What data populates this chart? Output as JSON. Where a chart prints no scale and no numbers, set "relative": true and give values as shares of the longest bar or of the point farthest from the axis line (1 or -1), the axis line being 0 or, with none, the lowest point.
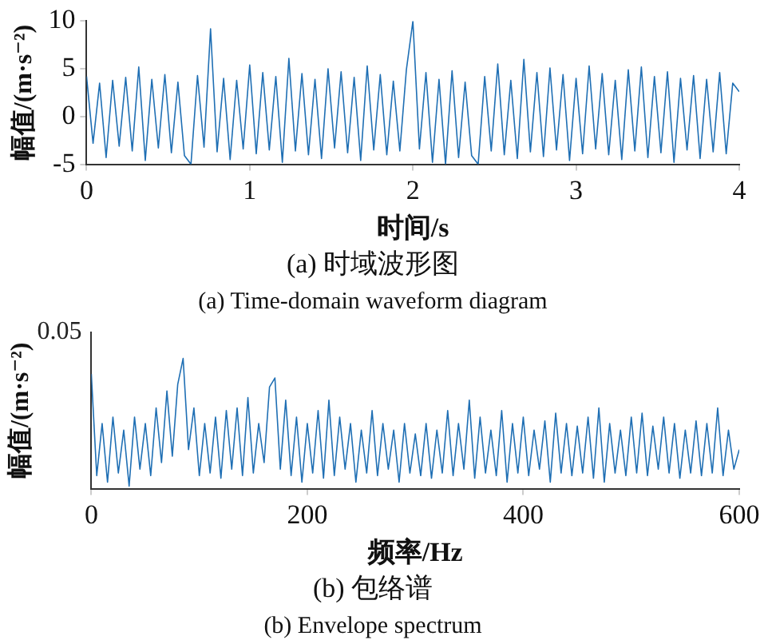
{
  "chart_data": [
    {
      "type": "line",
      "title": "(a) 时域波形图",
      "subtitle": "(a) Time-domain waveform diagram",
      "xlabel": "时间/s",
      "ylabel": "幅值/(m·s⁻²)",
      "xlim": [
        0,
        4
      ],
      "xticks": [
        0,
        1,
        2,
        3,
        4
      ],
      "ylim": [
        -5,
        10
      ],
      "yticks": [
        -5,
        0,
        5,
        10
      ],
      "grid": false,
      "legend": false,
      "marker": "none",
      "line_style": "solid",
      "x": [
        0,
        0.04,
        0.08,
        0.12,
        0.16,
        0.2,
        0.24,
        0.28,
        0.32,
        0.36,
        0.4,
        0.44,
        0.48,
        0.52,
        0.56,
        0.6,
        0.64,
        0.68,
        0.72,
        0.76,
        0.8,
        0.84,
        0.88,
        0.92,
        0.96,
        1,
        1.04,
        1.08,
        1.12,
        1.16,
        1.2,
        1.24,
        1.28,
        1.32,
        1.36,
        1.4,
        1.44,
        1.48,
        1.52,
        1.56,
        1.6,
        1.64,
        1.68,
        1.72,
        1.76,
        1.8,
        1.84,
        1.88,
        1.92,
        1.96,
        2,
        2.04,
        2.08,
        2.12,
        2.16,
        2.2,
        2.24,
        2.28,
        2.32,
        2.36,
        2.4,
        2.44,
        2.48,
        2.52,
        2.56,
        2.6,
        2.64,
        2.68,
        2.72,
        2.76,
        2.8,
        2.84,
        2.88,
        2.92,
        2.96,
        3,
        3.04,
        3.08,
        3.12,
        3.16,
        3.2,
        3.24,
        3.28,
        3.32,
        3.36,
        3.4,
        3.44,
        3.48,
        3.52,
        3.56,
        3.6,
        3.64,
        3.68,
        3.72,
        3.76,
        3.8,
        3.84,
        3.88,
        3.92,
        3.96,
        4
      ],
      "series": [
        {
          "color": "#1f6fb4",
          "values": [
            4.2,
            -2.8,
            3.5,
            -4.3,
            3.8,
            -3.1,
            4.1,
            -3.6,
            5.2,
            -4.6,
            3.9,
            -3.3,
            4.4,
            -3.8,
            3.6,
            -4.1,
            -5.0,
            4.3,
            -3.2,
            9.2,
            -3.7,
            4.0,
            -4.5,
            3.8,
            -3.4,
            5.4,
            -3.9,
            4.6,
            -3.5,
            4.2,
            -4.8,
            6.1,
            -3.6,
            4.5,
            -4.0,
            3.9,
            -4.4,
            5.0,
            -3.3,
            4.7,
            -3.8,
            4.1,
            -4.6,
            5.3,
            -3.5,
            4.4,
            -4.0,
            3.7,
            -3.6,
            4.9,
            10,
            -3.4,
            4.6,
            -4.8,
            3.9,
            -5.0,
            4.8,
            -4.3,
            3.6,
            -4.1,
            -5.0,
            4.2,
            -3.6,
            5.5,
            -4.0,
            3.8,
            -4.4,
            6.0,
            -3.7,
            4.6,
            -4.2,
            5.1,
            -3.5,
            4.4,
            -4.6,
            4.0,
            -3.9,
            5.3,
            -3.4,
            4.5,
            -4.0,
            3.8,
            -4.5,
            4.9,
            -3.6,
            5.2,
            -4.3,
            4.2,
            -3.8,
            4.7,
            -4.8,
            4.0,
            -3.5,
            4.3,
            -4.4,
            3.9,
            -3.7,
            4.6,
            -3.9,
            3.5,
            2.6
          ]
        }
      ]
    },
    {
      "type": "line",
      "title": "(b) 包络谱",
      "subtitle": "(b) Envelope spectrum",
      "xlabel": "频率/Hz",
      "ylabel": "幅值/(m·s⁻²)",
      "annotations": [
        "0.05"
      ],
      "relative": true,
      "xlim": [
        0,
        600
      ],
      "xticks": [
        0,
        200,
        400,
        600
      ],
      "grid": false,
      "legend": false,
      "marker": "none",
      "line_style": "solid",
      "x": [
        0,
        5,
        10,
        15,
        20,
        25,
        30,
        35,
        40,
        45,
        50,
        55,
        60,
        65,
        70,
        75,
        80,
        85,
        90,
        95,
        100,
        105,
        110,
        115,
        120,
        125,
        130,
        135,
        140,
        145,
        150,
        155,
        160,
        165,
        170,
        175,
        180,
        185,
        190,
        195,
        200,
        205,
        210,
        215,
        220,
        225,
        230,
        235,
        240,
        245,
        250,
        255,
        260,
        265,
        270,
        275,
        280,
        285,
        290,
        295,
        300,
        305,
        310,
        315,
        320,
        325,
        330,
        335,
        340,
        345,
        350,
        355,
        360,
        365,
        370,
        375,
        380,
        385,
        390,
        395,
        400,
        405,
        410,
        415,
        420,
        425,
        430,
        435,
        440,
        445,
        450,
        455,
        460,
        465,
        470,
        475,
        480,
        485,
        490,
        495,
        500,
        505,
        510,
        515,
        520,
        525,
        530,
        535,
        540,
        545,
        550,
        555,
        560,
        565,
        570,
        575,
        580,
        585,
        590,
        595,
        600
      ],
      "series": [
        {
          "color": "#1f6fb4",
          "values": [
            0.88,
            0.1,
            0.5,
            0.05,
            0.55,
            0.12,
            0.45,
            0.02,
            0.55,
            0.15,
            0.5,
            0.1,
            0.62,
            0.2,
            0.75,
            0.25,
            0.8,
            1,
            0.3,
            0.62,
            0.1,
            0.5,
            0.12,
            0.55,
            0.08,
            0.6,
            0.15,
            0.62,
            0.1,
            0.7,
            0.12,
            0.5,
            0.2,
            0.78,
            0.85,
            0.15,
            0.68,
            0.1,
            0.55,
            0.05,
            0.5,
            0.12,
            0.6,
            0.08,
            0.68,
            0.1,
            0.55,
            0.15,
            0.5,
            0.05,
            0.45,
            0.12,
            0.6,
            0.1,
            0.5,
            0.15,
            0.45,
            0.05,
            0.5,
            0.12,
            0.42,
            0.1,
            0.5,
            0.08,
            0.45,
            0.12,
            0.6,
            0.1,
            0.5,
            0.15,
            0.68,
            0.08,
            0.55,
            0.12,
            0.45,
            0.1,
            0.6,
            0.05,
            0.5,
            0.12,
            0.55,
            0.1,
            0.45,
            0.15,
            0.52,
            0.05,
            0.58,
            0.12,
            0.5,
            0.1,
            0.48,
            0.12,
            0.55,
            0.08,
            0.62,
            0.05,
            0.5,
            0.12,
            0.45,
            0.1,
            0.55,
            0.12,
            0.58,
            0.1,
            0.48,
            0.15,
            0.55,
            0.12,
            0.5,
            0.08,
            0.45,
            0.12,
            0.52,
            0.1,
            0.5,
            0.12,
            0.62,
            0.1,
            0.45,
            0.15,
            0.3
          ]
        }
      ]
    }
  ]
}
